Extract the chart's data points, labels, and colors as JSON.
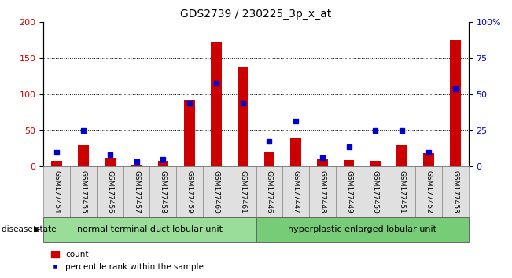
{
  "title": "GDS2739 / 230225_3p_x_at",
  "samples": [
    "GSM177454",
    "GSM177455",
    "GSM177456",
    "GSM177457",
    "GSM177458",
    "GSM177459",
    "GSM177460",
    "GSM177461",
    "GSM177446",
    "GSM177447",
    "GSM177448",
    "GSM177449",
    "GSM177450",
    "GSM177451",
    "GSM177452",
    "GSM177453"
  ],
  "counts": [
    8,
    30,
    12,
    3,
    8,
    93,
    173,
    138,
    20,
    40,
    10,
    9,
    8,
    30,
    19,
    175
  ],
  "percentiles_left": [
    20,
    50,
    17,
    7,
    10,
    88,
    116,
    88,
    35,
    63,
    12,
    28,
    50,
    50,
    20,
    108
  ],
  "group1_label": "normal terminal duct lobular unit",
  "group2_label": "hyperplastic enlarged lobular unit",
  "group1_count": 8,
  "group2_count": 8,
  "disease_state_label": "disease state",
  "legend_count_label": "count",
  "legend_percentile_label": "percentile rank within the sample",
  "bar_color": "#cc0000",
  "dot_color": "#0000cc",
  "group1_bg": "#99dd99",
  "group2_bg": "#77cc77",
  "ylim_left": [
    0,
    200
  ],
  "yticks_left": [
    0,
    50,
    100,
    150,
    200
  ],
  "yticks_right": [
    0,
    25,
    50,
    75,
    100
  ],
  "ytick_labels_right": [
    "0",
    "25",
    "50",
    "75",
    "100%"
  ],
  "dotted_lines": [
    50,
    100,
    150
  ],
  "background_color": "#ffffff",
  "title_fontsize": 10,
  "axis_fontsize": 8,
  "label_fontsize": 6.5,
  "group_fontsize": 8,
  "legend_fontsize": 7.5
}
